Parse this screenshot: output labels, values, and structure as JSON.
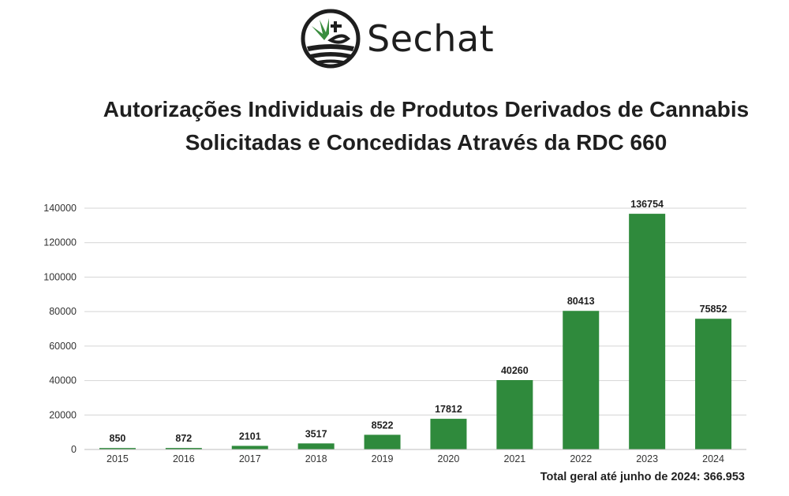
{
  "brand": {
    "name": "Sechat",
    "logo_icon": "cannabis-leaf-logo-icon",
    "logo_color": "#1e1e1e",
    "leaf_color": "#3a8d3f"
  },
  "chart_data": {
    "type": "bar",
    "title": "Autorizações Individuais de Produtos Derivados de Cannabis Solicitadas e Concedidas Através da RDC 660",
    "xlabel": "",
    "ylabel": "",
    "categories": [
      "2015",
      "2016",
      "2017",
      "2018",
      "2019",
      "2020",
      "2021",
      "2022",
      "2023",
      "2024"
    ],
    "values": [
      850,
      872,
      2101,
      3517,
      8522,
      17812,
      40260,
      80413,
      136754,
      75852
    ],
    "data_labels": [
      "850",
      "872",
      "2101",
      "3517",
      "8522",
      "17812",
      "40260",
      "80413",
      "136754",
      "75852"
    ],
    "ylim": [
      0,
      140000
    ],
    "yticks": [
      0,
      20000,
      40000,
      60000,
      80000,
      100000,
      120000,
      140000
    ],
    "grid": true,
    "legend": "none",
    "bar_color": "#2f8a3c"
  },
  "footer": {
    "total_text": "Total geral até junho de 2024: 366.953"
  }
}
